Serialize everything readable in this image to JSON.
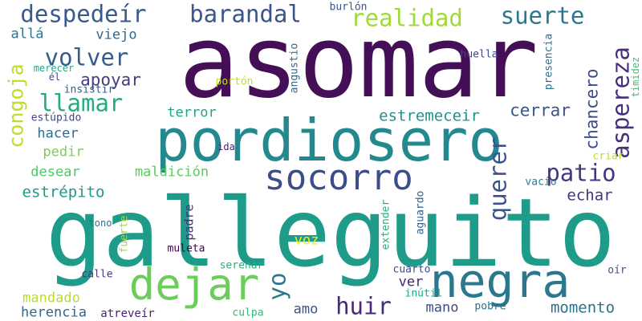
{
  "words": [
    {
      "text": "asomar",
      "color": "#440f57"
    },
    {
      "text": "galleguito",
      "color": "#1e9c89"
    },
    {
      "text": "pordiosero",
      "color": "#23898e"
    },
    {
      "text": "socorro",
      "color": "#3d4d8a"
    },
    {
      "text": "negra",
      "color": "#2a788e"
    },
    {
      "text": "dejar",
      "color": "#6ccd5a"
    },
    {
      "text": "despedeír",
      "color": "#38598c"
    },
    {
      "text": "barandal",
      "color": "#3a548c"
    },
    {
      "text": "realidad",
      "color": "#a0da39"
    },
    {
      "text": "suerte",
      "color": "#2a788e"
    },
    {
      "text": "volver",
      "color": "#365c8d"
    },
    {
      "text": "apoyar",
      "color": "#433e85"
    },
    {
      "text": "llamar",
      "color": "#25ab82"
    },
    {
      "text": "congoja",
      "color": "#bddf26"
    },
    {
      "text": "aspereza",
      "color": "#472f7d"
    },
    {
      "text": "chancero",
      "color": "#3e4c8a"
    },
    {
      "text": "patio",
      "color": "#463480"
    },
    {
      "text": "querer",
      "color": "#3b528b"
    },
    {
      "text": "cerrar",
      "color": "#39568c"
    },
    {
      "text": "estremeceir",
      "color": "#21918c"
    },
    {
      "text": "terror",
      "color": "#20a386"
    },
    {
      "text": "hacer",
      "color": "#2f6c8e"
    },
    {
      "text": "pedir",
      "color": "#7ad151"
    },
    {
      "text": "desear",
      "color": "#52c569"
    },
    {
      "text": "maldición",
      "color": "#5ec962"
    },
    {
      "text": "estrépito",
      "color": "#1f998a"
    },
    {
      "text": "echar",
      "color": "#46327e"
    },
    {
      "text": "padre",
      "color": "#46307e"
    },
    {
      "text": "yo",
      "color": "#2a788e"
    },
    {
      "text": "huir",
      "color": "#482878"
    },
    {
      "text": "mano",
      "color": "#3e4a89"
    },
    {
      "text": "amo",
      "color": "#3b528b"
    },
    {
      "text": "voz",
      "color": "#fde725"
    },
    {
      "text": "momento",
      "color": "#2c728e"
    },
    {
      "text": "mandado",
      "color": "#b8de29"
    },
    {
      "text": "herencia",
      "color": "#31688e"
    },
    {
      "text": "atreveír",
      "color": "#482475"
    },
    {
      "text": "culpa",
      "color": "#35b779"
    },
    {
      "text": "allá",
      "color": "#2c738e"
    },
    {
      "text": "viejo",
      "color": "#306a8e"
    },
    {
      "text": "merecer",
      "color": "#22a884"
    },
    {
      "text": "él",
      "color": "#414487"
    },
    {
      "text": "insistir",
      "color": "#38598c"
    },
    {
      "text": "estúpido",
      "color": "#3f4788"
    },
    {
      "text": "angustio",
      "color": "#31688e"
    },
    {
      "text": "burlón",
      "color": "#3a548c"
    },
    {
      "text": "huella",
      "color": "#404688"
    },
    {
      "text": "presencia",
      "color": "#2d708e"
    },
    {
      "text": "timidez",
      "color": "#42be71"
    },
    {
      "text": "portón",
      "color": "#c2df23"
    },
    {
      "text": "ida",
      "color": "#481f70"
    },
    {
      "text": "criar",
      "color": "#bddf26"
    },
    {
      "text": "vacío",
      "color": "#287d8e"
    },
    {
      "text": "aguardo",
      "color": "#355f8d"
    },
    {
      "text": "extender",
      "color": "#29af7f"
    },
    {
      "text": "fuerte",
      "color": "#a5db36"
    },
    {
      "text": "tono",
      "color": "#2d708e"
    },
    {
      "text": "muleta",
      "color": "#440154"
    },
    {
      "text": "serenar",
      "color": "#29af7f"
    },
    {
      "text": "calle",
      "color": "#453581"
    },
    {
      "text": "cuarto",
      "color": "#3d4e8a"
    },
    {
      "text": "inútil",
      "color": "#22a884"
    },
    {
      "text": "ver",
      "color": "#482677"
    },
    {
      "text": "pobre",
      "color": "#2e6e8e"
    },
    {
      "text": "oír",
      "color": "#3b528b"
    }
  ]
}
